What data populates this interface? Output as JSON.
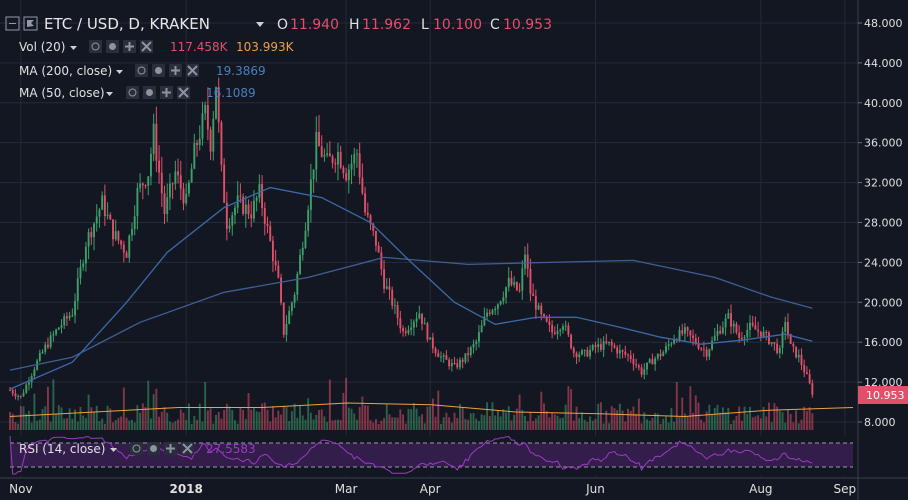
{
  "header": {
    "symbol": "ETC / USD, D, KRAKEN",
    "o_label": "O",
    "o_value": "11.940",
    "h_label": "H",
    "h_value": "11.962",
    "l_label": "L",
    "l_value": "10.100",
    "c_label": "C",
    "c_value": "10.953"
  },
  "indicators": [
    {
      "label": "Vol (20)",
      "values": [
        "117.458K",
        "103.993K"
      ],
      "value_colors": [
        "#e0506a",
        "#f0a040"
      ]
    },
    {
      "label": "MA (200, close)",
      "values": [
        "19.3869"
      ],
      "value_colors": [
        "#4a7fc0"
      ]
    },
    {
      "label": "MA (50, close)",
      "values": [
        "16.1089"
      ],
      "value_colors": [
        "#4a7fc0"
      ]
    }
  ],
  "rsi": {
    "label": "RSI (14, close)",
    "value": "27.5583"
  },
  "price_badge": "10.953",
  "colors": {
    "background": "#131722",
    "grid": "#252a38",
    "up": "#3fa06a",
    "down": "#e0506a",
    "ma200": "#3e5f94",
    "ma50": "#3a6aa8",
    "vol_ma": "#f0a040",
    "rsi": "#9b3bc2",
    "rsi_band": "#3a1e52",
    "axis_text": "#e0e0e0",
    "badge": "#e0506a"
  },
  "chart_data": {
    "type": "candlestick",
    "title": "ETC / USD, D, KRAKEN",
    "y_ticks": [
      "48.000",
      "44.000",
      "40.000",
      "36.000",
      "32.000",
      "28.000",
      "24.000",
      "20.000",
      "16.000",
      "12.000",
      "8.000"
    ],
    "ylim": [
      7,
      49.5
    ],
    "x_ticks": [
      "Nov",
      "2018",
      "Mar",
      "Apr",
      "Jun",
      "Aug",
      "Sep"
    ],
    "x_range": [
      "2017-10-28",
      "2018-09-04"
    ],
    "close_points": [
      [
        "2017-10-28",
        11.2
      ],
      [
        "2017-11-01",
        10.5
      ],
      [
        "2017-11-06",
        13.5
      ],
      [
        "2017-11-10",
        15.5
      ],
      [
        "2017-11-15",
        17.5
      ],
      [
        "2017-11-20",
        19
      ],
      [
        "2017-11-25",
        26
      ],
      [
        "2017-12-01",
        30
      ],
      [
        "2017-12-05",
        27
      ],
      [
        "2017-12-10",
        25
      ],
      [
        "2017-12-14",
        31
      ],
      [
        "2017-12-18",
        33
      ],
      [
        "2017-12-20",
        37
      ],
      [
        "2017-12-24",
        29
      ],
      [
        "2017-12-28",
        33
      ],
      [
        "2018-01-01",
        30
      ],
      [
        "2018-01-04",
        35
      ],
      [
        "2018-01-08",
        39
      ],
      [
        "2018-01-10",
        36
      ],
      [
        "2018-01-12",
        42
      ],
      [
        "2018-01-14",
        33
      ],
      [
        "2018-01-16",
        28
      ],
      [
        "2018-01-20",
        30
      ],
      [
        "2018-01-25",
        29
      ],
      [
        "2018-01-28",
        31
      ],
      [
        "2018-02-01",
        26
      ],
      [
        "2018-02-04",
        22
      ],
      [
        "2018-02-06",
        17
      ],
      [
        "2018-02-10",
        21
      ],
      [
        "2018-02-14",
        28
      ],
      [
        "2018-02-18",
        36
      ],
      [
        "2018-02-22",
        34
      ],
      [
        "2018-02-26",
        35
      ],
      [
        "2018-03-01",
        33
      ],
      [
        "2018-03-05",
        35
      ],
      [
        "2018-03-08",
        29
      ],
      [
        "2018-03-12",
        26
      ],
      [
        "2018-03-15",
        22
      ],
      [
        "2018-03-18",
        20
      ],
      [
        "2018-03-22",
        17
      ],
      [
        "2018-03-25",
        18
      ],
      [
        "2018-03-28",
        19
      ],
      [
        "2018-04-01",
        16
      ],
      [
        "2018-04-05",
        14.5
      ],
      [
        "2018-04-10",
        13.5
      ],
      [
        "2018-04-14",
        14.5
      ],
      [
        "2018-04-18",
        16
      ],
      [
        "2018-04-22",
        19
      ],
      [
        "2018-04-26",
        20
      ],
      [
        "2018-04-30",
        22
      ],
      [
        "2018-05-04",
        21
      ],
      [
        "2018-05-06",
        25
      ],
      [
        "2018-05-08",
        21
      ],
      [
        "2018-05-12",
        18.5
      ],
      [
        "2018-05-16",
        17
      ],
      [
        "2018-05-20",
        18
      ],
      [
        "2018-05-24",
        15
      ],
      [
        "2018-05-28",
        14.8
      ],
      [
        "2018-06-01",
        15.5
      ],
      [
        "2018-06-06",
        15.8
      ],
      [
        "2018-06-10",
        15
      ],
      [
        "2018-06-14",
        14.5
      ],
      [
        "2018-06-18",
        13
      ],
      [
        "2018-06-22",
        14.2
      ],
      [
        "2018-06-26",
        15
      ],
      [
        "2018-06-30",
        16.5
      ],
      [
        "2018-07-04",
        17
      ],
      [
        "2018-07-08",
        16
      ],
      [
        "2018-07-12",
        15
      ],
      [
        "2018-07-16",
        17
      ],
      [
        "2018-07-20",
        18.5
      ],
      [
        "2018-07-24",
        16.5
      ],
      [
        "2018-07-28",
        17.5
      ],
      [
        "2018-08-01",
        17
      ],
      [
        "2018-08-05",
        16
      ],
      [
        "2018-08-08",
        15
      ],
      [
        "2018-08-10",
        18.3
      ],
      [
        "2018-08-12",
        15.5
      ],
      [
        "2018-08-15",
        14.5
      ],
      [
        "2018-08-18",
        12.5
      ],
      [
        "2018-08-20",
        10.953
      ]
    ],
    "ma200": [
      [
        "2017-10-28",
        13.2
      ],
      [
        "2017-11-20",
        14.5
      ],
      [
        "2017-12-15",
        18
      ],
      [
        "2018-01-15",
        21
      ],
      [
        "2018-02-15",
        22.5
      ],
      [
        "2018-03-15",
        24.5
      ],
      [
        "2018-04-15",
        23.8
      ],
      [
        "2018-05-15",
        24
      ],
      [
        "2018-06-15",
        24.2
      ],
      [
        "2018-07-15",
        22.5
      ],
      [
        "2018-08-05",
        20.5
      ],
      [
        "2018-08-20",
        19.4
      ]
    ],
    "ma50": [
      [
        "2017-10-28",
        11.3
      ],
      [
        "2017-11-20",
        14
      ],
      [
        "2017-12-10",
        20
      ],
      [
        "2017-12-25",
        25
      ],
      [
        "2018-01-15",
        29.5
      ],
      [
        "2018-02-01",
        31.5
      ],
      [
        "2018-02-20",
        30.5
      ],
      [
        "2018-03-10",
        28
      ],
      [
        "2018-03-25",
        24
      ],
      [
        "2018-04-10",
        20
      ],
      [
        "2018-04-25",
        17.8
      ],
      [
        "2018-05-10",
        18.5
      ],
      [
        "2018-05-25",
        18.5
      ],
      [
        "2018-06-10",
        17.5
      ],
      [
        "2018-06-25",
        16.5
      ],
      [
        "2018-07-10",
        15.8
      ],
      [
        "2018-07-25",
        16.2
      ],
      [
        "2018-08-10",
        16.8
      ],
      [
        "2018-08-20",
        16.1
      ]
    ],
    "volume_ma_levels": [
      0.15,
      0.2,
      0.25,
      0.25,
      0.3,
      0.28,
      0.2,
      0.18,
      0.15,
      0.22,
      0.25
    ],
    "rsi_upper": 70,
    "rsi_lower": 30,
    "rsi_last": 27.5583
  }
}
